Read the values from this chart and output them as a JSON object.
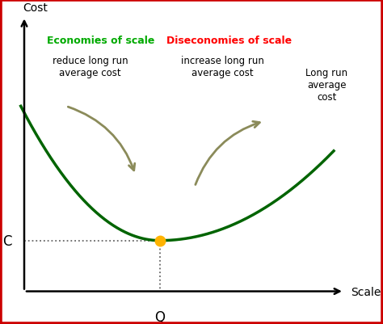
{
  "background_color": "#ffffff",
  "border_color": "#cc0000",
  "curve_color": "#006400",
  "curve_linewidth": 2.5,
  "min_point_color": "#FFB300",
  "min_point_x": 4.5,
  "min_point_y": 2.0,
  "C_label": "C",
  "Q_label": "Q",
  "Cost_label": "Cost",
  "Scale_label": "Scale",
  "eco_title": "Economies of scale",
  "eco_title_color": "#00aa00",
  "eco_sub": "reduce long run\naverage cost",
  "eco_sub_color": "#000000",
  "diseco_title": "Diseconomies of scale",
  "diseco_title_color": "#ff0000",
  "diseco_sub": "increase long run\naverage cost",
  "diseco_sub_color": "#000000",
  "lrac_label": "Long run\naverage\ncost",
  "lrac_label_color": "#000000",
  "arrow_color": "#8B8B5A",
  "dotted_line_color": "#666666",
  "xlim": [
    0,
    10
  ],
  "ylim": [
    0,
    10
  ]
}
